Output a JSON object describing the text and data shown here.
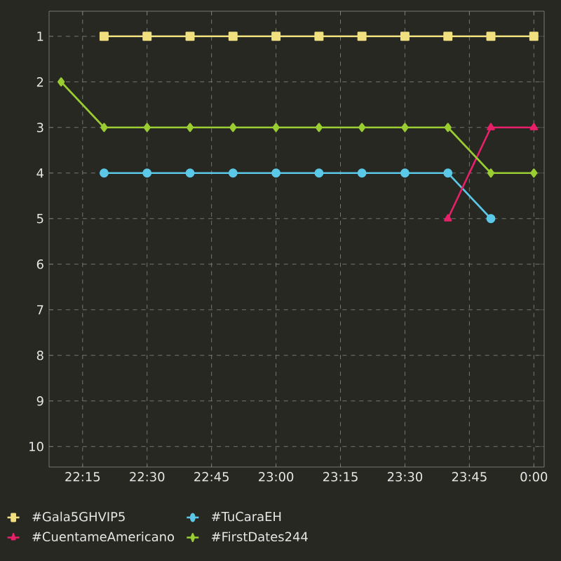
{
  "chart_data": {
    "type": "line",
    "series": [
      {
        "name": "#Gala5GHVIP5",
        "color": "#f0e080",
        "marker": "square",
        "x": [
          22.3333,
          22.5,
          22.6667,
          22.8333,
          23.0,
          23.1667,
          23.3333,
          23.5,
          23.6667,
          23.8333,
          24.0
        ],
        "values": [
          1,
          1,
          1,
          1,
          1,
          1,
          1,
          1,
          1,
          1,
          1
        ]
      },
      {
        "name": "#TuCaraEH",
        "color": "#5cc8e8",
        "marker": "circle",
        "x": [
          22.3333,
          22.5,
          22.6667,
          22.8333,
          23.0,
          23.1667,
          23.3333,
          23.5,
          23.6667,
          23.8333
        ],
        "values": [
          4,
          4,
          4,
          4,
          4,
          4,
          4,
          4,
          4,
          5
        ]
      },
      {
        "name": "#CuentameAmericano",
        "color": "#e8206a",
        "marker": "triangle",
        "x": [
          23.6667,
          23.8333,
          24.0
        ],
        "values": [
          5,
          3,
          3
        ]
      },
      {
        "name": "#FirstDates244",
        "color": "#9acd32",
        "marker": "diamond",
        "x": [
          22.1667,
          22.3333,
          22.5,
          22.6667,
          22.8333,
          23.0,
          23.1667,
          23.3333,
          23.5,
          23.6667,
          23.8333,
          24.0
        ],
        "values": [
          2,
          3,
          3,
          3,
          3,
          3,
          3,
          3,
          3,
          3,
          4,
          4
        ]
      }
    ],
    "xlim": [
      22.12,
      24.04
    ],
    "xticks": [
      {
        "value": 22.25,
        "label": "22:15"
      },
      {
        "value": 22.5,
        "label": "22:30"
      },
      {
        "value": 22.75,
        "label": "22:45"
      },
      {
        "value": 23.0,
        "label": "23:00"
      },
      {
        "value": 23.25,
        "label": "23:15"
      },
      {
        "value": 23.5,
        "label": "23:30"
      },
      {
        "value": 23.75,
        "label": "23:45"
      },
      {
        "value": 24.0,
        "label": "0:00"
      }
    ],
    "ylim": [
      10.45,
      0.45
    ],
    "yticks": [
      1,
      2,
      3,
      4,
      5,
      6,
      7,
      8,
      9,
      10
    ],
    "grid": true,
    "legend": "bottom"
  }
}
